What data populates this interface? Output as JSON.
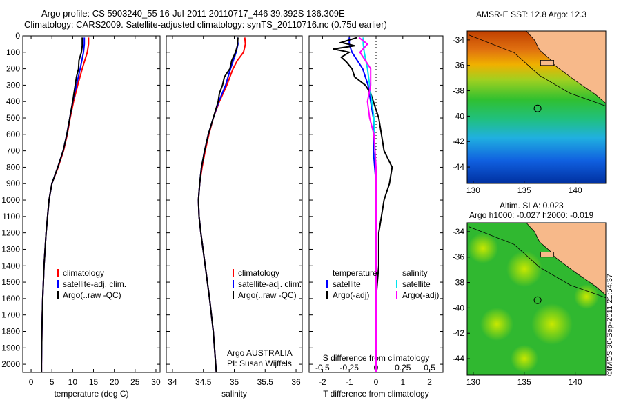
{
  "header": {
    "title_line1": "Argo profile: CS 5903240_55 16-Jul-2011 20110717_446 39.392S 136.309E",
    "title_line2": "Climatology: CARS2009. Satellite-adjusted climatology: synTS_20110716.nc (0.75d earlier)"
  },
  "maps": {
    "sst_title": "AMSR-E SST: 12.8 Argo: 12.3",
    "sla_title1": "Altim. SLA: 0.023",
    "sla_title2": "Argo h1000: -0.027 h2000: -0.019",
    "x_ticks": [
      "130",
      "135",
      "140"
    ],
    "y_ticks": [
      "-34",
      "-36",
      "-38",
      "-40",
      "-42",
      "-44"
    ],
    "land_color": "#f7b98a"
  },
  "credit": "©IMOS 30-Sep-2011 21:54:37",
  "colors": {
    "climatology": "#ff0000",
    "satellite": "#0000ff",
    "argo": "#000000",
    "sat_salinity": "#00e5ee",
    "argo_adj_salinity": "#ff00ff"
  },
  "chart_data": [
    {
      "type": "line",
      "xlabel": "temperature (deg C)",
      "ylabel": "",
      "xlim": [
        -2,
        31
      ],
      "ylim": [
        2050,
        0
      ],
      "x_ticks": [
        "0",
        "5",
        "10",
        "15",
        "20",
        "25",
        "30"
      ],
      "y_ticks": [
        "0",
        "100",
        "200",
        "300",
        "400",
        "500",
        "600",
        "700",
        "800",
        "900",
        "1000",
        "1100",
        "1200",
        "1300",
        "1400",
        "1500",
        "1600",
        "1700",
        "1800",
        "1900",
        "2000"
      ],
      "legend": [
        "climatology",
        "satellite-adj. clim.",
        "Argo(..raw -QC)"
      ],
      "series": [
        {
          "name": "climatology",
          "depth": [
            10,
            50,
            100,
            200,
            300,
            400,
            500,
            600,
            700,
            800,
            900,
            1000,
            1200,
            1400,
            1600,
            1800,
            2000,
            2050
          ],
          "values": [
            13.8,
            13.8,
            13.5,
            12.3,
            11.2,
            10.2,
            9.4,
            8.7,
            7.8,
            6.5,
            5.0,
            4.3,
            3.6,
            3.1,
            2.8,
            2.6,
            2.5,
            2.5
          ]
        },
        {
          "name": "satellite-adj. clim.",
          "depth": [
            10,
            50,
            100,
            200,
            300,
            400,
            500,
            600,
            700,
            800,
            900,
            1000,
            1200,
            1400,
            1600,
            1800,
            2000,
            2050
          ],
          "values": [
            12.8,
            12.8,
            12.6,
            11.8,
            10.9,
            10.0,
            9.3,
            8.6,
            7.7,
            6.4,
            5.0,
            4.3,
            3.6,
            3.1,
            2.8,
            2.6,
            2.5,
            2.5
          ]
        },
        {
          "name": "Argo(..raw -QC)",
          "depth": [
            10,
            60,
            100,
            150,
            200,
            250,
            300,
            350,
            400,
            500,
            600,
            700,
            800,
            900,
            1000,
            1200,
            1400,
            1600,
            1800,
            2000,
            2050
          ],
          "values": [
            12.3,
            12.3,
            12.1,
            11.5,
            11.4,
            10.9,
            10.6,
            10.3,
            10.0,
            9.3,
            8.6,
            7.7,
            6.4,
            5.0,
            4.3,
            3.6,
            3.1,
            2.8,
            2.6,
            2.5,
            2.5
          ]
        }
      ]
    },
    {
      "type": "line",
      "xlabel": "salinity",
      "xlim": [
        33.9,
        36.1
      ],
      "ylim": [
        2050,
        0
      ],
      "x_ticks": [
        "34",
        "34.5",
        "35",
        "35.5",
        "36"
      ],
      "legend": [
        "climatology",
        "satellite-adj. clim.",
        "Argo(..raw -QC)"
      ],
      "annotation": [
        "Argo AUSTRALIA",
        "PI: Susan Wijffels"
      ],
      "series": [
        {
          "name": "climatology",
          "depth": [
            10,
            50,
            100,
            150,
            200,
            300,
            400,
            500,
            600,
            700,
            800,
            900,
            1000,
            1100,
            1200,
            1400,
            1600,
            1800,
            2000,
            2050
          ],
          "values": [
            35.17,
            35.18,
            35.15,
            35.05,
            34.98,
            34.88,
            34.76,
            34.66,
            34.59,
            34.53,
            34.48,
            34.44,
            34.42,
            34.43,
            34.46,
            34.53,
            34.6,
            34.66,
            34.7,
            34.71
          ]
        },
        {
          "name": "satellite-adj. clim.",
          "depth": [
            10,
            50,
            100,
            200,
            300,
            400,
            500,
            600,
            700,
            800,
            900,
            1000,
            1100,
            1200,
            1400,
            1600,
            1800,
            2000,
            2050
          ],
          "values": [
            35.05,
            35.06,
            35.03,
            34.94,
            34.86,
            34.75,
            34.66,
            34.58,
            34.52,
            34.47,
            34.44,
            34.42,
            34.43,
            34.46,
            34.53,
            34.6,
            34.66,
            34.7,
            34.71
          ]
        },
        {
          "name": "Argo(..raw -QC)",
          "depth": [
            10,
            60,
            100,
            150,
            200,
            250,
            300,
            350,
            400,
            500,
            600,
            700,
            800,
            900,
            1000,
            1100,
            1200,
            1400,
            1600,
            1800,
            2000,
            2050
          ],
          "values": [
            35.06,
            35.05,
            35.02,
            34.96,
            34.93,
            34.84,
            34.81,
            34.76,
            34.74,
            34.66,
            34.58,
            34.52,
            34.47,
            34.44,
            34.42,
            34.43,
            34.46,
            34.53,
            34.6,
            34.66,
            34.7,
            34.71
          ]
        }
      ]
    },
    {
      "type": "line",
      "xlabel": "T difference from climatology",
      "xlabel_top": "S difference from climatology",
      "xlim": [
        -2.5,
        2.5
      ],
      "ylim": [
        2050,
        0
      ],
      "x_ticks": [
        "-2",
        "-1",
        "0",
        "1",
        "2"
      ],
      "x_ticks_salinity": [
        "-0.5",
        "-0.25",
        "0",
        "0.25",
        "0.5"
      ],
      "legend": [
        "temperature",
        "satellite",
        "Argo(-adj)",
        "salinity",
        "satellite",
        "Argo(-adj)"
      ],
      "series": [
        {
          "name": "temperature satellite",
          "depth": [
            10,
            50,
            100,
            200,
            300,
            400,
            500,
            700,
            900,
            1100,
            1500,
            2050
          ],
          "values": [
            -1.0,
            -1.0,
            -0.9,
            -0.5,
            -0.3,
            -0.2,
            -0.1,
            -0.1,
            0,
            0,
            0,
            0
          ]
        },
        {
          "name": "temperature Argo(-adj)",
          "depth": [
            10,
            40,
            60,
            80,
            100,
            130,
            160,
            200,
            250,
            300,
            350,
            400,
            450,
            500,
            600,
            700,
            800,
            900,
            1000,
            1100,
            1200,
            1400,
            1600,
            1800,
            2000,
            2050
          ],
          "values": [
            -0.7,
            -1.3,
            -0.8,
            -1.6,
            -1.0,
            -1.3,
            -1.1,
            -0.9,
            -0.8,
            -0.4,
            -0.2,
            -0.1,
            0,
            0.1,
            0.2,
            0.3,
            0.6,
            0.5,
            0.3,
            0.2,
            0.1,
            0.1,
            0,
            0,
            0,
            0
          ]
        },
        {
          "name": "salinity satellite",
          "depth": [
            10,
            50,
            100,
            200,
            300,
            400,
            500,
            700,
            900,
            1100,
            1500,
            2050
          ],
          "values": [
            -0.12,
            -0.12,
            -0.11,
            -0.08,
            -0.06,
            -0.04,
            -0.02,
            -0.01,
            0,
            0,
            0,
            0
          ]
        },
        {
          "name": "salinity Argo(-adj)",
          "depth": [
            10,
            50,
            100,
            150,
            200,
            300,
            400,
            500,
            600,
            800,
            1000,
            1500,
            2050
          ],
          "values": [
            -0.16,
            -0.08,
            -0.15,
            -0.1,
            -0.05,
            -0.05,
            -0.08,
            -0.06,
            -0.02,
            0,
            0,
            0,
            0
          ]
        }
      ]
    }
  ]
}
